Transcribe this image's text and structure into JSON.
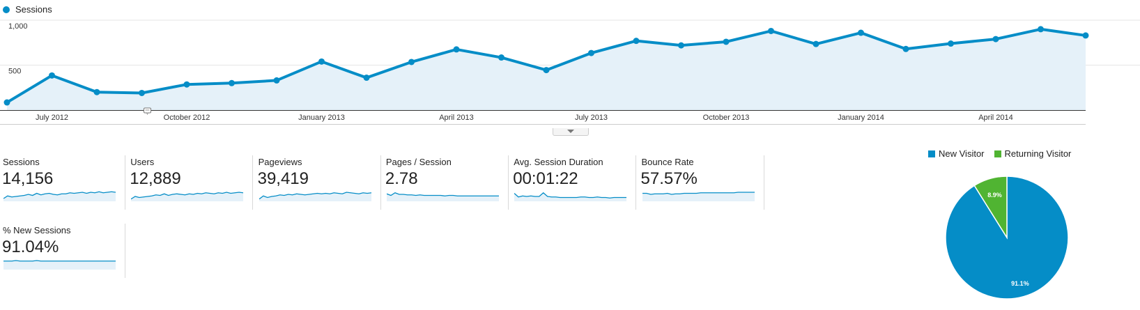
{
  "legend": {
    "label": "Sessions",
    "color": "#058dc7"
  },
  "chart_data": [
    {
      "type": "area",
      "series": [
        {
          "name": "Sessions",
          "values": [
            85,
            385,
            200,
            190,
            285,
            300,
            330,
            540,
            360,
            535,
            675,
            585,
            445,
            635,
            770,
            720,
            760,
            880,
            735,
            860,
            680,
            740,
            790,
            900,
            830
          ]
        }
      ],
      "x_tick_labels": [
        "July 2012",
        "October 2012",
        "January 2013",
        "April 2013",
        "July 2013",
        "October 2013",
        "January 2014",
        "April 2014"
      ],
      "y_tick_labels": [
        "1,000",
        "500"
      ],
      "ylim": [
        0,
        1000
      ],
      "grid": true,
      "color": "#058dc7"
    },
    {
      "type": "pie",
      "labels": [
        "New Visitor",
        "Returning Visitor"
      ],
      "values": [
        91.1,
        8.9
      ],
      "value_labels": [
        "91.1%",
        "8.9%"
      ],
      "colors": [
        "#058dc7",
        "#50b432"
      ],
      "legend_position": "top"
    }
  ],
  "metrics": [
    {
      "label": "Sessions",
      "value": "14,156",
      "spark": [
        4,
        9,
        7,
        8,
        9,
        10,
        12,
        10,
        14,
        11,
        13,
        14,
        12,
        11,
        13,
        13,
        15,
        14,
        15,
        16,
        14,
        16,
        15,
        17,
        15,
        16,
        17,
        16
      ]
    },
    {
      "label": "Users",
      "value": "12,889",
      "spark": [
        3,
        8,
        6,
        7,
        8,
        9,
        11,
        10,
        13,
        10,
        12,
        13,
        12,
        11,
        13,
        12,
        14,
        13,
        15,
        14,
        13,
        15,
        14,
        16,
        14,
        15,
        16,
        15
      ]
    },
    {
      "label": "Pageviews",
      "value": "39,419",
      "spark": [
        3,
        9,
        6,
        8,
        9,
        11,
        10,
        12,
        11,
        13,
        12,
        11,
        12,
        13,
        14,
        13,
        14,
        13,
        15,
        14,
        13,
        16,
        15,
        14,
        13,
        15,
        14,
        15
      ]
    },
    {
      "label": "Pages / Session",
      "value": "2.78",
      "spark": [
        13,
        10,
        15,
        12,
        12,
        11,
        11,
        10,
        11,
        10,
        10,
        10,
        10,
        10,
        9,
        10,
        10,
        9,
        9,
        9,
        9,
        9,
        9,
        9,
        9,
        9,
        9,
        9
      ]
    },
    {
      "label": "Avg. Session Duration",
      "value": "00:01:22",
      "spark": [
        14,
        7,
        9,
        8,
        9,
        8,
        8,
        15,
        8,
        7,
        7,
        6,
        6,
        6,
        6,
        6,
        7,
        7,
        6,
        6,
        7,
        6,
        6,
        5,
        6,
        6,
        6,
        6
      ]
    },
    {
      "label": "Bounce Rate",
      "value": "57.57%",
      "spark": [
        14,
        14,
        12,
        13,
        13,
        13,
        14,
        12,
        13,
        13,
        14,
        14,
        14,
        14,
        15,
        15,
        15,
        15,
        15,
        15,
        15,
        15,
        15,
        16,
        16,
        16,
        16,
        16
      ]
    },
    {
      "label": "% New Sessions",
      "value": "91.04%",
      "spark": [
        15,
        15,
        15,
        16,
        15,
        15,
        15,
        15,
        16,
        15,
        15,
        15,
        15,
        15,
        15,
        15,
        15,
        15,
        15,
        15,
        15,
        15,
        15,
        15,
        15,
        15,
        15,
        15
      ]
    }
  ]
}
